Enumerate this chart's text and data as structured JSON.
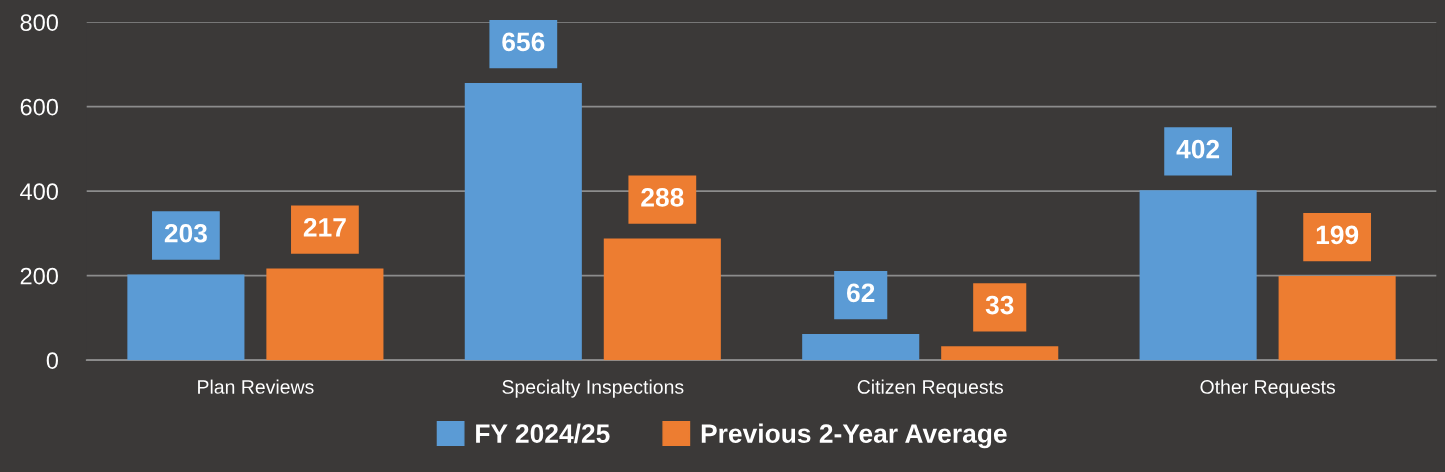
{
  "chart_data": {
    "type": "bar",
    "categories": [
      "Plan Reviews",
      "Specialty Inspections",
      "Citizen Requests",
      "Other Requests"
    ],
    "series": [
      {
        "name": "FY 2024/25",
        "color": "#5b9bd5",
        "values": [
          203,
          656,
          62,
          402
        ]
      },
      {
        "name": "Previous 2-Year Average",
        "color": "#ed7d31",
        "values": [
          217,
          288,
          33,
          199
        ]
      }
    ],
    "ylim": [
      0,
      800
    ],
    "yticks": [
      0,
      200,
      400,
      600,
      800
    ],
    "grid": "y",
    "legend": "bottom",
    "data_labels": true
  }
}
